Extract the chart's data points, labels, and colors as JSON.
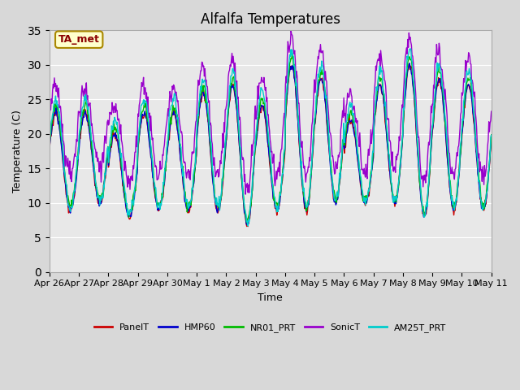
{
  "title": "Alfalfa Temperatures",
  "ylabel": "Temperature (C)",
  "xlabel": "Time",
  "annotation": "TA_met",
  "ylim": [
    0,
    35
  ],
  "yticks": [
    0,
    5,
    10,
    15,
    20,
    25,
    30,
    35
  ],
  "background_color": "#d8d8d8",
  "plot_bg_color": "#e8e8e8",
  "series": [
    "PanelT",
    "HMP60",
    "NR01_PRT",
    "SonicT",
    "AM25T_PRT"
  ],
  "colors": [
    "#cc0000",
    "#0000cc",
    "#00bb00",
    "#9900cc",
    "#00cccc"
  ],
  "linewidth": 1.0,
  "x_tick_labels": [
    "Apr 26",
    "Apr 27",
    "Apr 28",
    "Apr 29",
    "Apr 30",
    "May 1",
    "May 2",
    "May 3",
    "May 4",
    "May 5",
    "May 6",
    "May 7",
    "May 8",
    "May 9",
    "May 10",
    "May 11"
  ],
  "x_tick_positions": [
    0,
    1,
    2,
    3,
    4,
    5,
    6,
    7,
    8,
    9,
    10,
    11,
    12,
    13,
    14,
    15
  ],
  "n_days": 15,
  "pts_per_day": 48,
  "day_mins": [
    9,
    10,
    8,
    9,
    9,
    9,
    7,
    9,
    9,
    10,
    10,
    10,
    8,
    9,
    9
  ],
  "day_maxs": [
    23,
    23,
    20,
    23,
    23,
    26,
    27,
    24,
    30,
    28,
    22,
    27,
    30,
    28,
    27
  ]
}
